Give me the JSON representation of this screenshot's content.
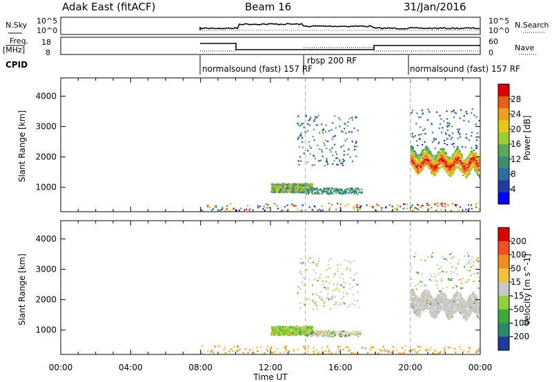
{
  "header": {
    "radar": "Adak East (fitACF)",
    "beam": "Beam 16",
    "date": "31/Jan/2016"
  },
  "panels": {
    "nsky": {
      "left_label": "N.Sky",
      "right_label": "N.Search",
      "ticks": [
        "10^5",
        "10^0"
      ],
      "right_ticks": [
        "10^5",
        "10^0"
      ]
    },
    "freq": {
      "left_label": "Freq.",
      "unit_label": "[MHz]",
      "ticks": [
        "18",
        "8"
      ],
      "right_label": "Nave",
      "right_ticks": [
        "60",
        "0"
      ]
    },
    "cpid": {
      "label": "CPID",
      "modes": [
        "normalsound (fast) 157 RF",
        "rbsp 200 RF",
        "normalsound (fast) 157 RF"
      ]
    }
  },
  "colors": {
    "power": [
      "#0000ff",
      "#1a3fa0",
      "#2e6e9e",
      "#3c8f70",
      "#5aa85a",
      "#9acd32",
      "#e6c619",
      "#f0a020",
      "#e86018",
      "#dd0000"
    ],
    "velocity": [
      "#dd0000",
      "#f05020",
      "#f08c20",
      "#f0c040",
      "#c8c8c8",
      "#8fd03c",
      "#3caa3c",
      "#2a8a6a",
      "#1e3c9a"
    ]
  },
  "chart_data": [
    {
      "type": "heatmap",
      "name": "power",
      "xlabel": "",
      "ylabel": "Slant Range [km]",
      "ylim": [
        200,
        4600
      ],
      "yticks": [
        "1000",
        "2000",
        "3000",
        "4000"
      ],
      "colorbar": {
        "label": "Power [dB]",
        "ticks": [
          "4",
          "8",
          "12",
          "16",
          "20",
          "24",
          "28"
        ],
        "range": [
          0,
          32
        ]
      }
    },
    {
      "type": "heatmap",
      "name": "velocity",
      "xlabel": "Time UT",
      "ylabel": "Slant Range [km]",
      "ylim": [
        200,
        4600
      ],
      "xticks": [
        "00:00",
        "04:00",
        "08:00",
        "12:00",
        "16:00",
        "20:00",
        "00:00"
      ],
      "yticks": [
        "1000",
        "2000",
        "3000",
        "4000"
      ],
      "colorbar": {
        "label": "Velocity [m s^-1]",
        "ticks": [
          "200",
          "100",
          "50",
          "15",
          "-15",
          "-50",
          "-100",
          "-200"
        ]
      }
    }
  ]
}
